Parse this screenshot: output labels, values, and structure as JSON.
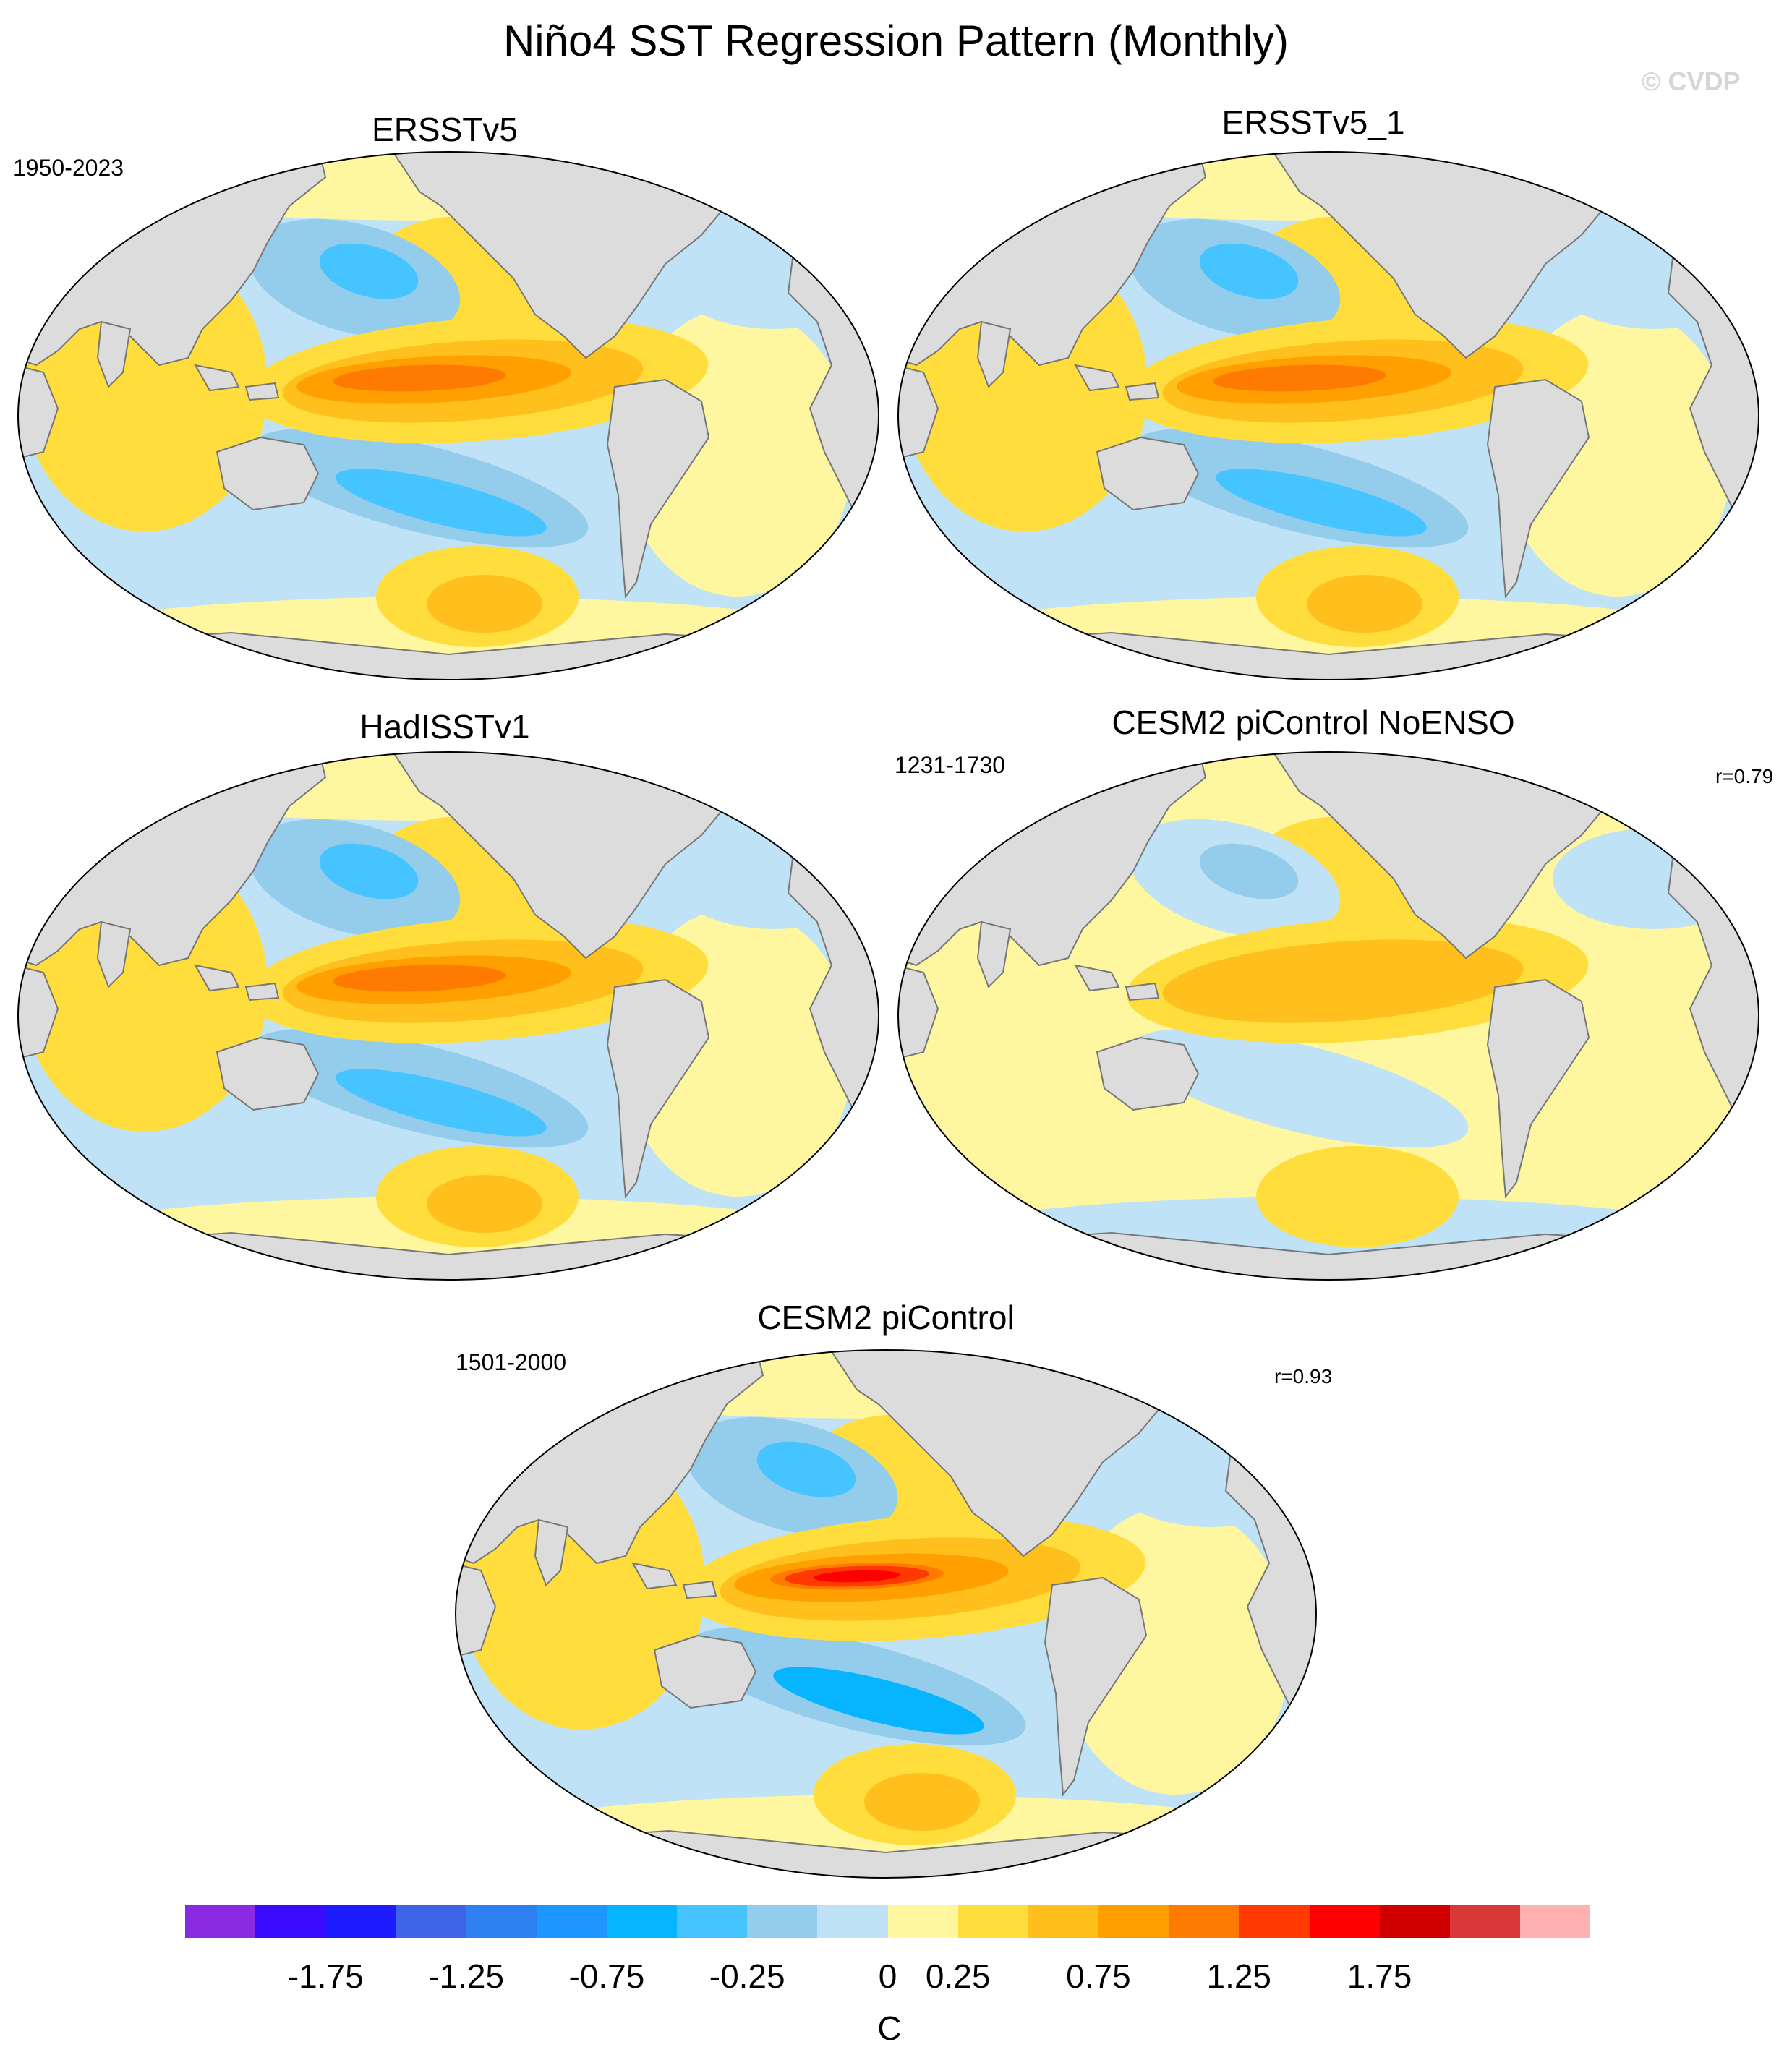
{
  "title": "Niño4 SST Regression Pattern (Monthly)",
  "watermark": "© CVDP",
  "colors": {
    "land": "#dcdcdc",
    "coast": "#777777",
    "levels": [
      "#8a2be2",
      "#3a0cff",
      "#1c1cff",
      "#3e63e6",
      "#2e80f0",
      "#1e96ff",
      "#06b4ff",
      "#46c4ff",
      "#94ccec",
      "#bfe2f6",
      "#fff7a0",
      "#ffdd3c",
      "#ffc01e",
      "#ffa000",
      "#ff7a00",
      "#ff3a00",
      "#ff0000",
      "#d00000",
      "#d83838",
      "#ffb0b0"
    ]
  },
  "panels": [
    {
      "title": "ERSSTv5",
      "period": "1950-2023",
      "r": "",
      "variant": "obs"
    },
    {
      "title": "ERSSTv5_1",
      "period": "",
      "r": "",
      "variant": "obs"
    },
    {
      "title": "HadISSTv1",
      "period": "",
      "r": "",
      "variant": "obs"
    },
    {
      "title": "CESM2 piControl NoENSO",
      "period": "1231-1730",
      "r": "r=0.79",
      "variant": "weak"
    },
    {
      "title": "CESM2 piControl",
      "period": "1501-2000",
      "r": "r=0.93",
      "variant": "strong"
    }
  ],
  "colorbar": {
    "units": "C",
    "tick_labels": [
      "-1.75",
      "-1.25",
      "-0.75",
      "-0.25",
      "0",
      "0.25",
      "0.75",
      "1.25",
      "1.75"
    ]
  }
}
